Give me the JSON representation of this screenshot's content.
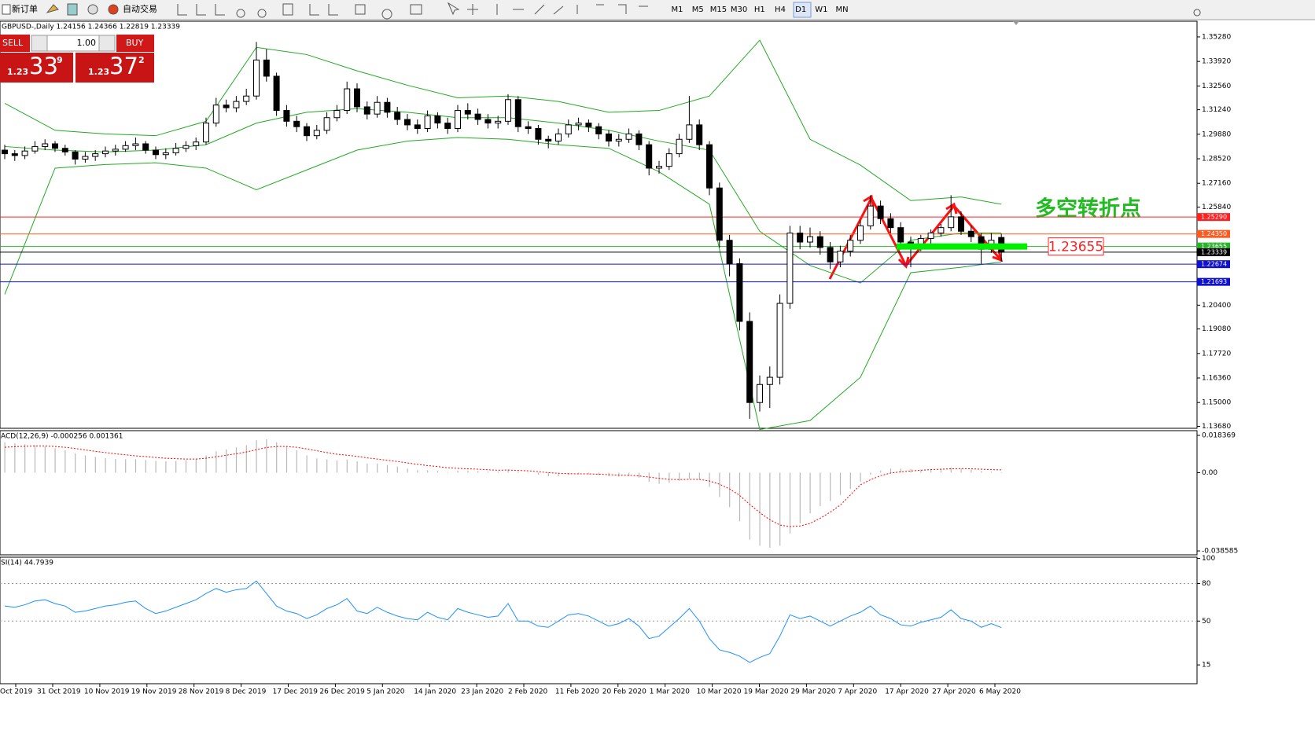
{
  "toolbar": {
    "new_order": "新订单",
    "auto_trading": "自动交易",
    "timeframes": [
      "M1",
      "M5",
      "M15",
      "M30",
      "H1",
      "H4",
      "D1",
      "W1",
      "MN"
    ]
  },
  "trade_panel": {
    "sell": "SELL",
    "buy": "BUY",
    "lots": "1.00",
    "sell_price": {
      "big": "1.23",
      "pips": "33",
      "point": "9"
    },
    "buy_price": {
      "big": "1.23",
      "pips": "37",
      "point": "2"
    }
  },
  "price_chart": {
    "header": "GBPUSD-,Daily  1.24156 1.24366 1.22819 1.23339",
    "ylim": [
      1.1357,
      1.3615
    ],
    "yticks": [
      {
        "value": 1.3528,
        "label": "1.35280"
      },
      {
        "value": 1.3392,
        "label": "1.33920"
      },
      {
        "value": 1.3256,
        "label": "1.32560"
      },
      {
        "value": 1.3124,
        "label": "1.31240"
      },
      {
        "value": 1.2988,
        "label": "1.29880"
      },
      {
        "value": 1.2852,
        "label": "1.28520"
      },
      {
        "value": 1.2716,
        "label": "1.27160"
      },
      {
        "value": 1.2584,
        "label": "1.25840"
      },
      {
        "value": 1.204,
        "label": "1.20400"
      },
      {
        "value": 1.1908,
        "label": "1.19080"
      },
      {
        "value": 1.1772,
        "label": "1.17720"
      },
      {
        "value": 1.1636,
        "label": "1.16360"
      },
      {
        "value": 1.15,
        "label": "1.15000"
      },
      {
        "value": 1.1368,
        "label": "1.13680"
      }
    ],
    "levels": [
      {
        "value": 1.2529,
        "label": "1.25290",
        "color": "#ff2020"
      },
      {
        "value": 1.2435,
        "label": "1.24350",
        "color": "#ff5a1e"
      },
      {
        "value": 1.23655,
        "label": "1.23655",
        "color": "#28b428"
      },
      {
        "value": 1.23339,
        "label": "1.23339",
        "color": "#000000"
      },
      {
        "value": 1.22674,
        "label": "1.22674",
        "color": "#1010d0"
      },
      {
        "value": 1.21693,
        "label": "1.21693",
        "color": "#1010d0"
      }
    ],
    "bars": [
      [
        1.29,
        1.293,
        1.285,
        1.288
      ],
      [
        1.288,
        1.29,
        1.284,
        1.287
      ],
      [
        1.287,
        1.292,
        1.285,
        1.2895
      ],
      [
        1.2895,
        1.295,
        1.288,
        1.292
      ],
      [
        1.292,
        1.296,
        1.29,
        1.2935
      ],
      [
        1.2935,
        1.295,
        1.289,
        1.291
      ],
      [
        1.291,
        1.293,
        1.287,
        1.289
      ],
      [
        1.289,
        1.29,
        1.282,
        1.285
      ],
      [
        1.285,
        1.289,
        1.283,
        1.2865
      ],
      [
        1.2865,
        1.29,
        1.284,
        1.288
      ],
      [
        1.288,
        1.292,
        1.286,
        1.2895
      ],
      [
        1.2895,
        1.293,
        1.287,
        1.2905
      ],
      [
        1.2905,
        1.295,
        1.289,
        1.2925
      ],
      [
        1.2925,
        1.297,
        1.29,
        1.2935
      ],
      [
        1.2935,
        1.295,
        1.288,
        1.29
      ],
      [
        1.29,
        1.292,
        1.285,
        1.2875
      ],
      [
        1.2875,
        1.291,
        1.285,
        1.2885
      ],
      [
        1.2885,
        1.294,
        1.287,
        1.291
      ],
      [
        1.291,
        1.295,
        1.289,
        1.2925
      ],
      [
        1.2925,
        1.297,
        1.29,
        1.2945
      ],
      [
        1.2945,
        1.308,
        1.293,
        1.305
      ],
      [
        1.305,
        1.319,
        1.303,
        1.315
      ],
      [
        1.315,
        1.318,
        1.311,
        1.3135
      ],
      [
        1.3135,
        1.32,
        1.311,
        1.317
      ],
      [
        1.317,
        1.324,
        1.315,
        1.32
      ],
      [
        1.32,
        1.35,
        1.318,
        1.34
      ],
      [
        1.34,
        1.346,
        1.328,
        1.331
      ],
      [
        1.331,
        1.333,
        1.309,
        1.312
      ],
      [
        1.312,
        1.315,
        1.303,
        1.306
      ],
      [
        1.306,
        1.309,
        1.3,
        1.303
      ],
      [
        1.303,
        1.305,
        1.295,
        1.298
      ],
      [
        1.298,
        1.304,
        1.296,
        1.301
      ],
      [
        1.301,
        1.311,
        1.299,
        1.308
      ],
      [
        1.308,
        1.315,
        1.306,
        1.312
      ],
      [
        1.312,
        1.328,
        1.31,
        1.324
      ],
      [
        1.324,
        1.327,
        1.311,
        1.314
      ],
      [
        1.314,
        1.317,
        1.307,
        1.31
      ],
      [
        1.31,
        1.32,
        1.308,
        1.3165
      ],
      [
        1.3165,
        1.319,
        1.308,
        1.311
      ],
      [
        1.311,
        1.314,
        1.304,
        1.307
      ],
      [
        1.307,
        1.31,
        1.301,
        1.304
      ],
      [
        1.304,
        1.307,
        1.299,
        1.302
      ],
      [
        1.302,
        1.312,
        1.3,
        1.309
      ],
      [
        1.309,
        1.311,
        1.302,
        1.305
      ],
      [
        1.305,
        1.308,
        1.299,
        1.302
      ],
      [
        1.302,
        1.315,
        1.3,
        1.312
      ],
      [
        1.312,
        1.316,
        1.307,
        1.31
      ],
      [
        1.31,
        1.313,
        1.304,
        1.307
      ],
      [
        1.307,
        1.31,
        1.302,
        1.305
      ],
      [
        1.305,
        1.309,
        1.302,
        1.306
      ],
      [
        1.306,
        1.321,
        1.304,
        1.318
      ],
      [
        1.318,
        1.32,
        1.3,
        1.303
      ],
      [
        1.303,
        1.306,
        1.299,
        1.302
      ],
      [
        1.302,
        1.304,
        1.293,
        1.296
      ],
      [
        1.296,
        1.298,
        1.291,
        1.295
      ],
      [
        1.295,
        1.302,
        1.293,
        1.299
      ],
      [
        1.299,
        1.307,
        1.297,
        1.304
      ],
      [
        1.304,
        1.308,
        1.301,
        1.305
      ],
      [
        1.305,
        1.307,
        1.3,
        1.303
      ],
      [
        1.303,
        1.305,
        1.296,
        1.299
      ],
      [
        1.299,
        1.301,
        1.292,
        1.295
      ],
      [
        1.295,
        1.299,
        1.292,
        1.296
      ],
      [
        1.296,
        1.302,
        1.294,
        1.299
      ],
      [
        1.299,
        1.301,
        1.29,
        1.293
      ],
      [
        1.293,
        1.295,
        1.276,
        1.28
      ],
      [
        1.28,
        1.284,
        1.277,
        1.281
      ],
      [
        1.281,
        1.291,
        1.279,
        1.288
      ],
      [
        1.288,
        1.299,
        1.286,
        1.296
      ],
      [
        1.296,
        1.32,
        1.294,
        1.304
      ],
      [
        1.304,
        1.307,
        1.29,
        1.293
      ],
      [
        1.293,
        1.295,
        1.265,
        1.269
      ],
      [
        1.269,
        1.272,
        1.236,
        1.24
      ],
      [
        1.24,
        1.243,
        1.22,
        1.227
      ],
      [
        1.227,
        1.23,
        1.19,
        1.195
      ],
      [
        1.195,
        1.2,
        1.141,
        1.15
      ],
      [
        1.15,
        1.165,
        1.145,
        1.16
      ],
      [
        1.16,
        1.17,
        1.147,
        1.164
      ],
      [
        1.164,
        1.21,
        1.16,
        1.205
      ],
      [
        1.205,
        1.248,
        1.202,
        1.244
      ],
      [
        1.244,
        1.248,
        1.235,
        1.239
      ],
      [
        1.239,
        1.247,
        1.236,
        1.242
      ],
      [
        1.242,
        1.245,
        1.232,
        1.236
      ],
      [
        1.236,
        1.239,
        1.224,
        1.228
      ],
      [
        1.228,
        1.237,
        1.225,
        1.234
      ],
      [
        1.234,
        1.243,
        1.231,
        1.24
      ],
      [
        1.24,
        1.251,
        1.238,
        1.248
      ],
      [
        1.248,
        1.265,
        1.246,
        1.259
      ],
      [
        1.259,
        1.262,
        1.249,
        1.252
      ],
      [
        1.252,
        1.255,
        1.244,
        1.247
      ],
      [
        1.247,
        1.25,
        1.236,
        1.239
      ],
      [
        1.239,
        1.242,
        1.225,
        1.237
      ],
      [
        1.237,
        1.243,
        1.234,
        1.241
      ],
      [
        1.241,
        1.246,
        1.238,
        1.244
      ],
      [
        1.244,
        1.249,
        1.242,
        1.247
      ],
      [
        1.247,
        1.265,
        1.245,
        1.253
      ],
      [
        1.253,
        1.256,
        1.243,
        1.245
      ],
      [
        1.245,
        1.248,
        1.239,
        1.242
      ],
      [
        1.242,
        1.244,
        1.227,
        1.235
      ],
      [
        1.235,
        1.244,
        1.233,
        1.24
      ],
      [
        1.24156,
        1.24366,
        1.22819,
        1.23339
      ]
    ],
    "bollinger": {
      "color": "#22aa22",
      "x": [
        0,
        5,
        10,
        15,
        20,
        25,
        30,
        35,
        40,
        45,
        50,
        55,
        60,
        65,
        70,
        75,
        80,
        85,
        90,
        95,
        99
      ],
      "upper": [
        1.316,
        1.301,
        1.299,
        1.298,
        1.306,
        1.347,
        1.343,
        1.334,
        1.326,
        1.319,
        1.32,
        1.317,
        1.311,
        1.312,
        1.32,
        1.351,
        1.296,
        1.2817,
        1.262,
        1.264,
        1.26
      ],
      "middle": [
        1.292,
        1.29,
        1.289,
        1.29,
        1.293,
        1.305,
        1.311,
        1.313,
        1.311,
        1.308,
        1.308,
        1.305,
        1.301,
        1.295,
        1.29,
        1.245,
        1.226,
        1.2163,
        1.24,
        1.244,
        1.244
      ],
      "lower": [
        1.21,
        1.28,
        1.282,
        1.283,
        1.28,
        1.268,
        1.279,
        1.29,
        1.295,
        1.297,
        1.296,
        1.293,
        1.291,
        1.278,
        1.26,
        1.135,
        1.14,
        1.164,
        1.222,
        1.225,
        1.228
      ]
    },
    "annotation": "多空转折点",
    "marked_level": {
      "value": 1.23655,
      "label": "1.23655"
    }
  },
  "macd": {
    "header": "ACD(12,26,9) -0.000256 0.001361",
    "ylim": [
      -0.0405,
      0.0207
    ],
    "yticks": [
      0.018369,
      {
        "value": 0,
        "label": "0.00"
      },
      -0.038585
    ],
    "histogram_color": "#b8b8b8",
    "signal_color": "#ff0000",
    "histogram": [
      0.015,
      0.0145,
      0.014,
      0.0135,
      0.013,
      0.012,
      0.011,
      0.0095,
      0.0085,
      0.0078,
      0.0072,
      0.0068,
      0.0066,
      0.0066,
      0.0062,
      0.0058,
      0.0056,
      0.0058,
      0.0062,
      0.0068,
      0.0085,
      0.0105,
      0.0115,
      0.0125,
      0.0135,
      0.016,
      0.0165,
      0.015,
      0.013,
      0.011,
      0.0085,
      0.007,
      0.0065,
      0.006,
      0.0065,
      0.0055,
      0.0045,
      0.0045,
      0.0038,
      0.003,
      0.002,
      0.0012,
      0.0012,
      0.0008,
      0.0003,
      0.001,
      0.001,
      0.0008,
      0.0005,
      0.0005,
      0.0015,
      0.0005,
      0,
      -0.001,
      -0.0018,
      -0.0018,
      -0.0012,
      -0.0008,
      -0.0008,
      -0.0012,
      -0.0018,
      -0.002,
      -0.0018,
      -0.0025,
      -0.0045,
      -0.0055,
      -0.005,
      -0.004,
      -0.003,
      -0.0035,
      -0.007,
      -0.012,
      -0.017,
      -0.024,
      -0.033,
      -0.036,
      -0.037,
      -0.036,
      -0.03,
      -0.025,
      -0.02,
      -0.0165,
      -0.014,
      -0.011,
      -0.008,
      -0.0045,
      -0.001,
      0.001,
      0.002,
      0.002,
      0.0018,
      0.0015,
      0.0015,
      0.0018,
      0.0025,
      0.002,
      0.0015,
      0.0008,
      0.0005,
      -0.000256
    ],
    "signal": [
      0.0125,
      0.0128,
      0.013,
      0.0131,
      0.0131,
      0.0129,
      0.0125,
      0.0119,
      0.0112,
      0.0105,
      0.0099,
      0.0093,
      0.0088,
      0.0083,
      0.0079,
      0.0075,
      0.0071,
      0.0069,
      0.0067,
      0.0067,
      0.0071,
      0.0078,
      0.0086,
      0.0093,
      0.0102,
      0.0113,
      0.0124,
      0.0129,
      0.0129,
      0.0125,
      0.0117,
      0.0108,
      0.0099,
      0.0091,
      0.0086,
      0.008,
      0.0073,
      0.0067,
      0.0061,
      0.0055,
      0.0048,
      0.0041,
      0.0035,
      0.003,
      0.0024,
      0.0021,
      0.0019,
      0.0017,
      0.0014,
      0.0012,
      0.0013,
      0.0011,
      0.0009,
      0.0005,
      0,
      -0.0003,
      -0.0005,
      -0.0006,
      -0.0006,
      -0.0008,
      -0.001,
      -0.0012,
      -0.0013,
      -0.0016,
      -0.0022,
      -0.0028,
      -0.0033,
      -0.0034,
      -0.0033,
      -0.0033,
      -0.0041,
      -0.0057,
      -0.008,
      -0.0112,
      -0.0156,
      -0.0197,
      -0.0232,
      -0.0258,
      -0.0266,
      -0.0263,
      -0.025,
      -0.0225,
      -0.0195,
      -0.016,
      -0.011,
      -0.006,
      -0.0035,
      -0.0015,
      -0.0002,
      0.0004,
      0.0008,
      0.0012,
      0.0015,
      0.0017,
      0.0019,
      0.002,
      0.0019,
      0.0017,
      0.0015,
      0.001361
    ]
  },
  "rsi": {
    "header": "SI(14) 44.7939",
    "ylim": [
      0,
      101
    ],
    "yticks": [
      100,
      80,
      50,
      15
    ],
    "levels": [
      80,
      50
    ],
    "color": "#1e90ff",
    "values": [
      62,
      61,
      63,
      66,
      67,
      64,
      62,
      57,
      58,
      60,
      62,
      63,
      65,
      66,
      60,
      56,
      58,
      61,
      64,
      67,
      72,
      76,
      73,
      75,
      76,
      82,
      72,
      62,
      58,
      56,
      52,
      55,
      60,
      63,
      68,
      58,
      56,
      61,
      57,
      54,
      52,
      51,
      57,
      53,
      51,
      60,
      57,
      55,
      53,
      54,
      64,
      50,
      50,
      46,
      45,
      50,
      55,
      56,
      54,
      50,
      46,
      48,
      52,
      46,
      36,
      38,
      45,
      52,
      60,
      50,
      36,
      27,
      25,
      22,
      17,
      21,
      24,
      38,
      55,
      52,
      54,
      50,
      46,
      50,
      54,
      57,
      62,
      55,
      52,
      47,
      46,
      49,
      51,
      53,
      59,
      52,
      50,
      45,
      48,
      44.7939
    ]
  },
  "date_axis": {
    "labels": [
      "Oct 2019",
      "31 Oct 2019",
      "10 Nov 2019",
      "19 Nov 2019",
      "28 Nov 2019",
      "8 Dec 2019",
      "17 Dec 2019",
      "26 Dec 2019",
      "5 Jan 2020",
      "14 Jan 2020",
      "23 Jan 2020",
      "2 Feb 2020",
      "11 Feb 2020",
      "20 Feb 2020",
      "1 Mar 2020",
      "10 Mar 2020",
      "19 Mar 2020",
      "29 Mar 2020",
      "7 Apr 2020",
      "17 Apr 2020",
      "27 Apr 2020",
      "6 May 2020"
    ]
  }
}
